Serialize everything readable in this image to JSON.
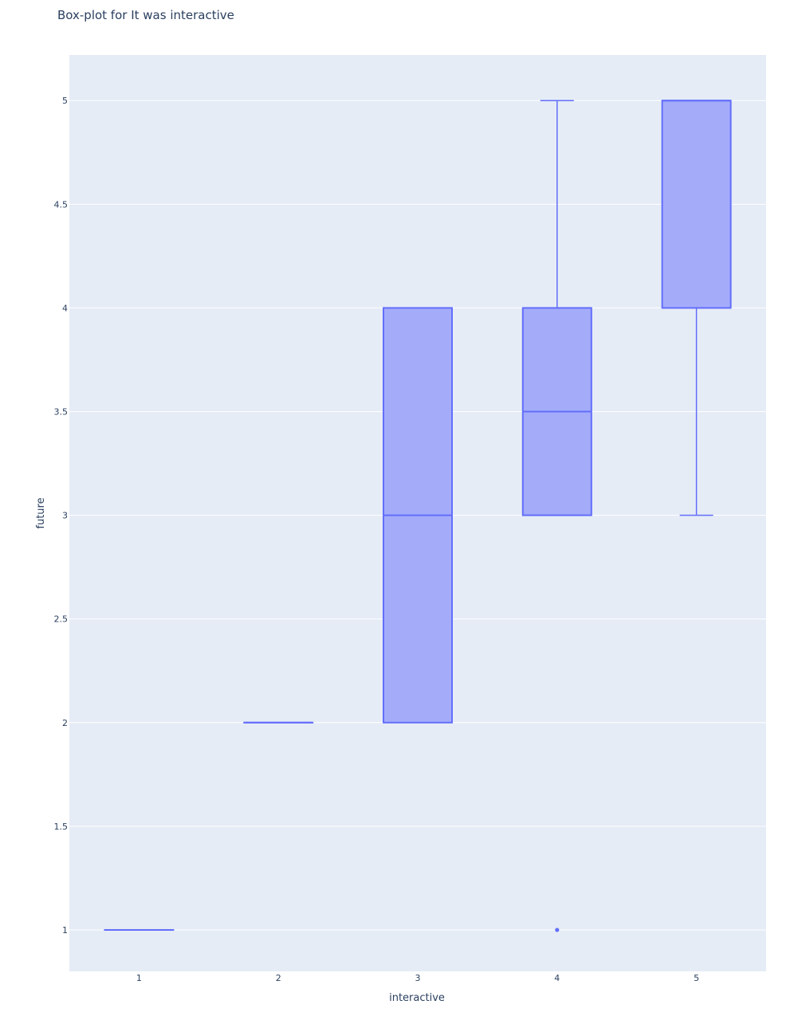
{
  "colors": {
    "plot_background": "#e5ecf6",
    "grid": "#ffffff",
    "box_fill": "#a4acfa",
    "box_line": "#636efa",
    "text": "#2a3f5f"
  },
  "chart_data": {
    "type": "box",
    "title": "Box-plot for It was interactive",
    "xlabel": "interactive",
    "ylabel": "future",
    "categories": [
      "1",
      "2",
      "3",
      "4",
      "5"
    ],
    "y_ticks": [
      "1",
      "1.5",
      "2",
      "2.5",
      "3",
      "3.5",
      "4",
      "4.5",
      "5"
    ],
    "ylim": [
      0.8,
      5.22
    ],
    "grid": true,
    "legend": "none",
    "boxes": [
      {
        "category": "1",
        "min": 1,
        "q1": 1,
        "median": 1,
        "q3": 1,
        "max": 1,
        "outliers": []
      },
      {
        "category": "2",
        "min": 2,
        "q1": 2,
        "median": 2,
        "q3": 2,
        "max": 2,
        "outliers": []
      },
      {
        "category": "3",
        "min": 2,
        "q1": 2,
        "median": 3,
        "q3": 4,
        "max": 4,
        "outliers": []
      },
      {
        "category": "4",
        "min": 3,
        "q1": 3,
        "median": 3.5,
        "q3": 4,
        "max": 5,
        "outliers": [
          1
        ]
      },
      {
        "category": "5",
        "min": 3,
        "q1": 4,
        "median": 5,
        "q3": 5,
        "max": 5,
        "outliers": []
      }
    ]
  }
}
